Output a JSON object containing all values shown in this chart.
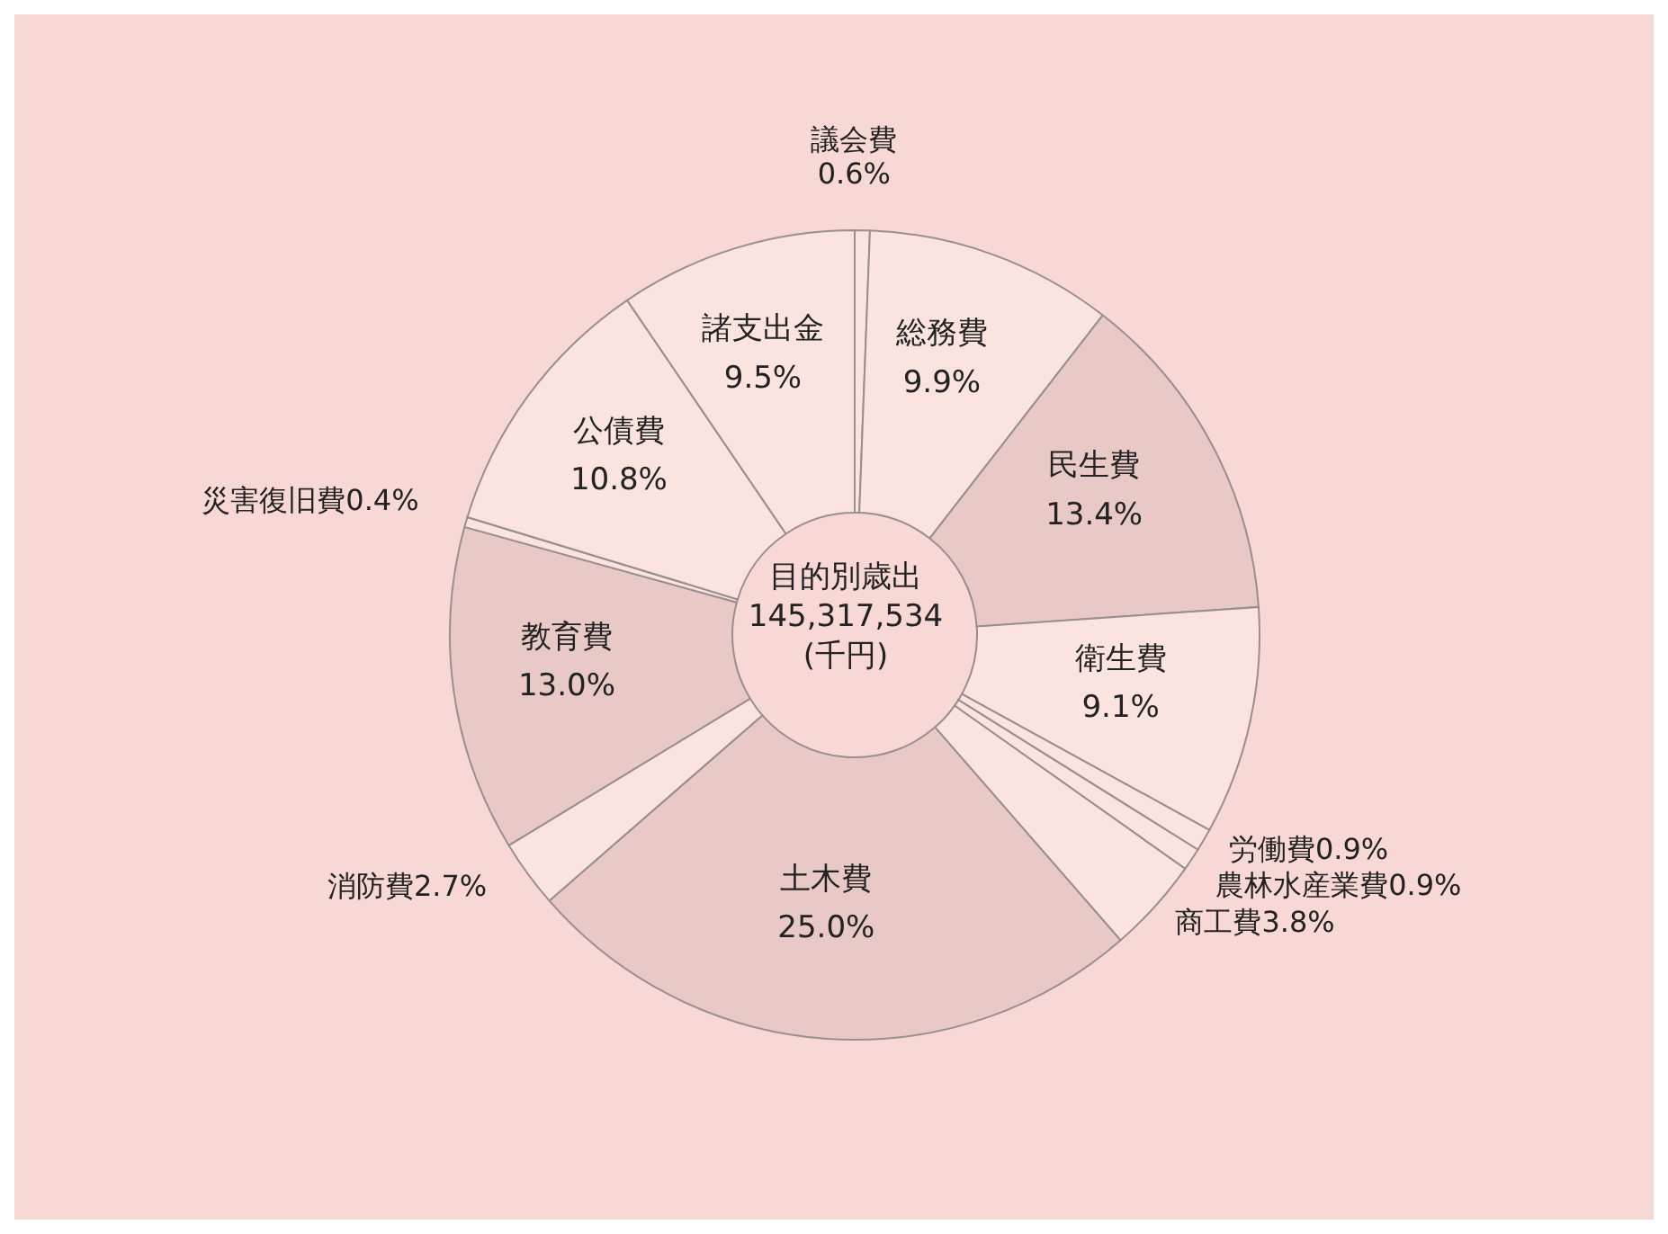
{
  "chart_data": {
    "type": "donut",
    "title": "目的別歳出",
    "subtitle": "145,317,534",
    "annotations": [
      "(千円)"
    ],
    "categories": [
      "議会費",
      "総務費",
      "民生費",
      "衛生費",
      "労働費",
      "農林水産業費",
      "商工費",
      "土木費",
      "消防費",
      "教育費",
      "災害復旧費",
      "公債費",
      "諸支出金"
    ],
    "values": [
      0.6,
      9.9,
      13.4,
      9.1,
      0.9,
      0.9,
      3.8,
      25.0,
      2.7,
      13.0,
      0.4,
      10.8,
      9.5
    ],
    "value_labels": [
      "0.6%",
      "9.9%",
      "13.4%",
      "9.1%",
      "0.9%",
      "0.9%",
      "3.8%",
      "25.0%",
      "2.7%",
      "13.0%",
      "0.4%",
      "10.8%",
      "9.5%"
    ],
    "colors": [
      "#fbe3df",
      "#fbe3df",
      "#e9c9c6",
      "#fbe3df",
      "#fbe3df",
      "#fbe3df",
      "#fbe3df",
      "#e9c9c6",
      "#fbe3df",
      "#e9c9c6",
      "#fbe3df",
      "#fbe3df",
      "#fbe3df"
    ],
    "legend": false
  }
}
